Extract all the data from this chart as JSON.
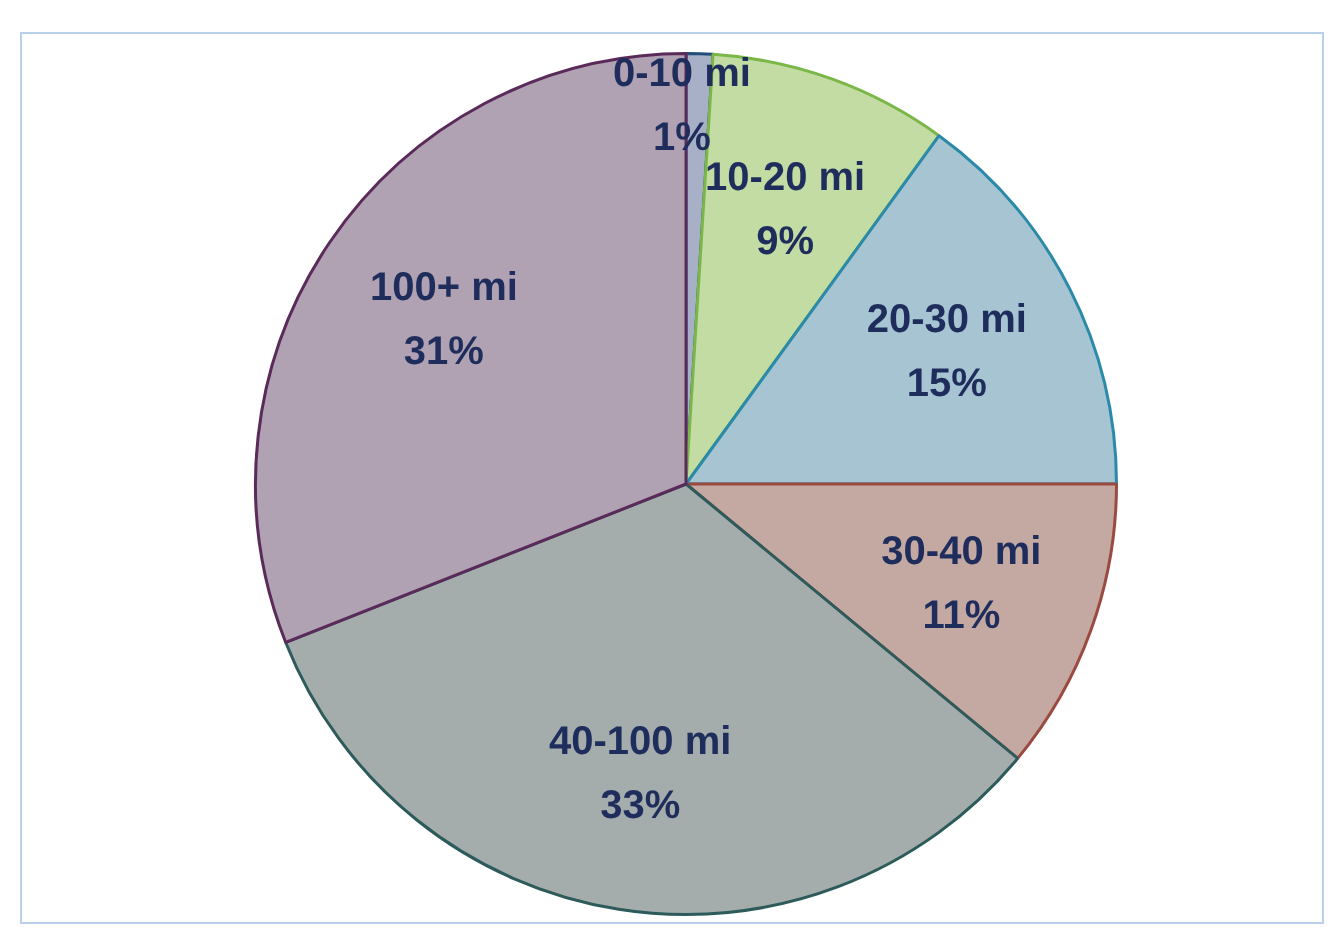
{
  "chart_data": {
    "type": "pie",
    "categories": [
      "0-10 mi",
      "10-20 mi",
      "20-30 mi",
      "30-40 mi",
      "40-100 mi",
      "100+ mi"
    ],
    "values": [
      1,
      9,
      15,
      11,
      33,
      31
    ],
    "colors": [
      "#a8b0c8",
      "#c2dca4",
      "#a6c4d2",
      "#c4a8a2",
      "#a4acac",
      "#b0a2b2"
    ],
    "value_labels": [
      "1%",
      "9%",
      "15%",
      "11%",
      "33%",
      "31%"
    ],
    "legend": false
  }
}
